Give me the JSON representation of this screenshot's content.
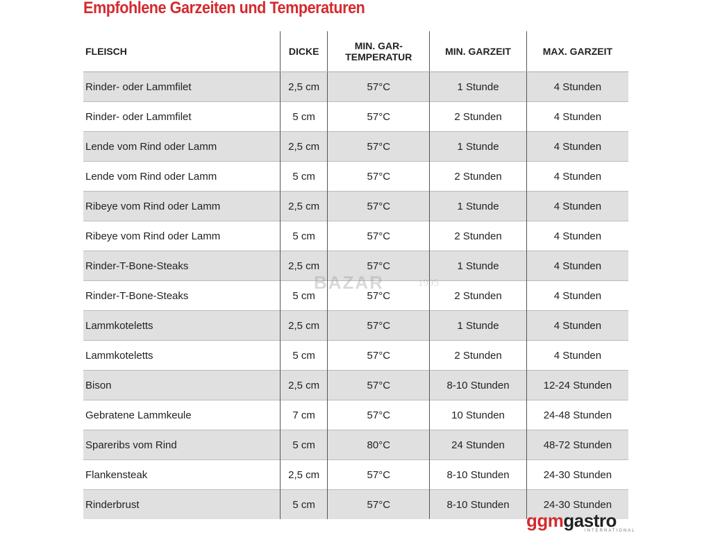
{
  "header": {
    "title": "Empfohlene Garzeiten und Temperaturen"
  },
  "table": {
    "columns": [
      "FLEISCH",
      "DICKE",
      "MIN. GAR-TEMPERATUR",
      "MIN. GARZEIT",
      "MAX. GARZEIT"
    ],
    "rows": [
      [
        "Rinder- oder Lammfilet",
        "2,5 cm",
        "57°C",
        "1 Stunde",
        "4 Stunden"
      ],
      [
        "Rinder- oder Lammfilet",
        "5 cm",
        "57°C",
        "2 Stunden",
        "4 Stunden"
      ],
      [
        "Lende vom Rind oder Lamm",
        "2,5 cm",
        "57°C",
        "1 Stunde",
        "4 Stunden"
      ],
      [
        "Lende vom Rind oder Lamm",
        "5 cm",
        "57°C",
        "2 Stunden",
        "4 Stunden"
      ],
      [
        "Ribeye vom Rind oder Lamm",
        "2,5 cm",
        "57°C",
        "1 Stunde",
        "4 Stunden"
      ],
      [
        "Ribeye vom Rind oder Lamm",
        "5 cm",
        "57°C",
        "2 Stunden",
        "4 Stunden"
      ],
      [
        "Rinder-T-Bone-Steaks",
        "2,5 cm",
        "57°C",
        "1 Stunde",
        "4 Stunden"
      ],
      [
        "Rinder-T-Bone-Steaks",
        "5 cm",
        "57°C",
        "2 Stunden",
        "4 Stunden"
      ],
      [
        "Lammkoteletts",
        "2,5 cm",
        "57°C",
        "1 Stunde",
        "4 Stunden"
      ],
      [
        "Lammkoteletts",
        "5 cm",
        "57°C",
        "2 Stunden",
        "4 Stunden"
      ],
      [
        "Bison",
        "2,5 cm",
        "57°C",
        "8-10 Stunden",
        "12-24 Stunden"
      ],
      [
        "Gebratene Lammkeule",
        "7 cm",
        "57°C",
        "10 Stunden",
        "24-48 Stunden"
      ],
      [
        "Spareribs vom Rind",
        "5 cm",
        "80°C",
        "24 Stunden",
        "48-72 Stunden"
      ],
      [
        "Flankensteak",
        "2,5 cm",
        "57°C",
        "8-10 Stunden",
        "24-30 Stunden"
      ],
      [
        "Rinderbrust",
        "5 cm",
        "57°C",
        "8-10 Stunden",
        "24-30 Stunden"
      ]
    ]
  },
  "watermark": {
    "text": "BAZAR",
    "year": "1995"
  },
  "logo": {
    "left": "ggm",
    "right": "gastro",
    "sub": "INTERNATIONAL"
  }
}
